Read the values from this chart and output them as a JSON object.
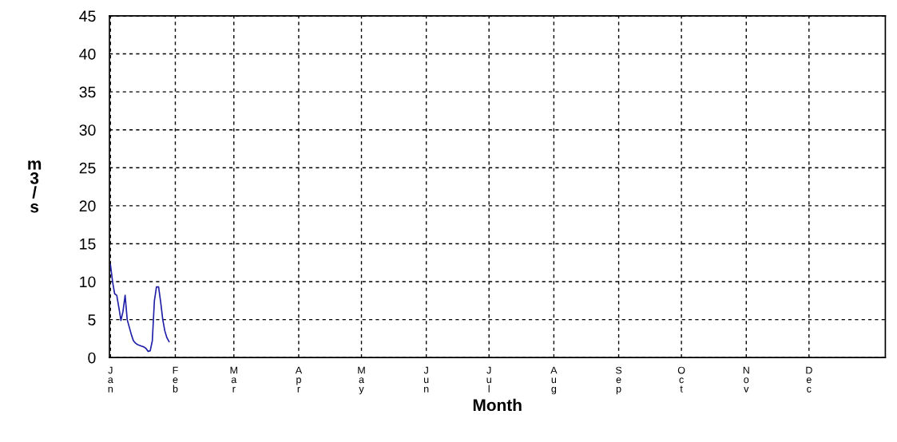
{
  "chart_data": {
    "type": "line",
    "xlabel": "Month",
    "ylabel": "m\n3\n/\ns",
    "categories": [
      "J\na\nn",
      null,
      null,
      null,
      null,
      null,
      null,
      null,
      null,
      null,
      null,
      null,
      null,
      null,
      null,
      null,
      null,
      null,
      null,
      null,
      null,
      null,
      null,
      null,
      null,
      null,
      null,
      null,
      null,
      null,
      null,
      "F\ne\nb",
      null,
      null,
      null,
      null,
      null,
      null,
      null,
      null,
      null,
      null,
      null,
      null,
      null,
      null,
      null,
      null,
      null,
      null,
      null,
      null,
      null,
      null,
      null,
      null,
      null,
      null,
      null,
      "M\na\nr",
      null,
      null,
      null,
      null,
      null,
      null,
      null,
      null,
      null,
      null,
      null,
      null,
      null,
      null,
      null,
      null,
      null,
      null,
      null,
      null,
      null,
      null,
      null,
      null,
      null,
      null,
      null,
      null,
      null,
      null,
      "A\np\nr",
      null,
      null,
      null,
      null,
      null,
      null,
      null,
      null,
      null,
      null,
      null,
      null,
      null,
      null,
      null,
      null,
      null,
      null,
      null,
      null,
      null,
      null,
      null,
      null,
      null,
      null,
      null,
      null,
      null,
      "M\na\ny",
      null,
      null,
      null,
      null,
      null,
      null,
      null,
      null,
      null,
      null,
      null,
      null,
      null,
      null,
      null,
      null,
      null,
      null,
      null,
      null,
      null,
      null,
      null,
      null,
      null,
      null,
      null,
      null,
      null,
      null,
      "J\nu\nn",
      null,
      null,
      null,
      null,
      null,
      null,
      null,
      null,
      null,
      null,
      null,
      null,
      null,
      null,
      null,
      null,
      null,
      null,
      null,
      null,
      null,
      null,
      null,
      null,
      null,
      null,
      null,
      null,
      null,
      "J\nu\nl",
      null,
      null,
      null,
      null,
      null,
      null,
      null,
      null,
      null,
      null,
      null,
      null,
      null,
      null,
      null,
      null,
      null,
      null,
      null,
      null,
      null,
      null,
      null,
      null,
      null,
      null,
      null,
      null,
      null,
      null,
      "A\nu\ng",
      null,
      null,
      null,
      null,
      null,
      null,
      null,
      null,
      null,
      null,
      null,
      null,
      null,
      null,
      null,
      null,
      null,
      null,
      null,
      null,
      null,
      null,
      null,
      null,
      null,
      null,
      null,
      null,
      null,
      null,
      "S\ne\np",
      null,
      null,
      null,
      null,
      null,
      null,
      null,
      null,
      null,
      null,
      null,
      null,
      null,
      null,
      null,
      null,
      null,
      null,
      null,
      null,
      null,
      null,
      null,
      null,
      null,
      null,
      null,
      null,
      null,
      "O\nc\nt",
      null,
      null,
      null,
      null,
      null,
      null,
      null,
      null,
      null,
      null,
      null,
      null,
      null,
      null,
      null,
      null,
      null,
      null,
      null,
      null,
      null,
      null,
      null,
      null,
      null,
      null,
      null,
      null,
      null,
      null,
      "N\no\nv",
      null,
      null,
      null,
      null,
      null,
      null,
      null,
      null,
      null,
      null,
      null,
      null,
      null,
      null,
      null,
      null,
      null,
      null,
      null,
      null,
      null,
      null,
      null,
      null,
      null,
      null,
      null,
      null,
      null,
      "D\ne\nc",
      null,
      null,
      null,
      null,
      null,
      null,
      null,
      null,
      null,
      null,
      null,
      null,
      null,
      null,
      null,
      null,
      null,
      null,
      null,
      null,
      null,
      null,
      null,
      null,
      null,
      null,
      null,
      null,
      null,
      null,
      null,
      null,
      null,
      null,
      null,
      null
    ],
    "series": [
      {
        "color": "#1f1fa8",
        "values": [
          12.2,
          10.0,
          8.4,
          8.2,
          6.6,
          4.9,
          6.1,
          8.2,
          5.0,
          4.0,
          3.0,
          2.2,
          1.9,
          1.7,
          1.6,
          1.5,
          1.4,
          1.2,
          0.8,
          0.9,
          2.2,
          7.5,
          9.3,
          9.3,
          7.3,
          5.0,
          3.5,
          2.6,
          2.1,
          null,
          null,
          null,
          null,
          null,
          null,
          null,
          null,
          null,
          null,
          null,
          null,
          null,
          null,
          null,
          null,
          null,
          null,
          null,
          null,
          null,
          null,
          null,
          null,
          null,
          null,
          null,
          null,
          null,
          null,
          null,
          null,
          null,
          null,
          null,
          null,
          null,
          null,
          null,
          null,
          null,
          null,
          null,
          null,
          null,
          null,
          null,
          null,
          null,
          null,
          null,
          null,
          null,
          null,
          null,
          null,
          null,
          null,
          null,
          null,
          null,
          null,
          null,
          null,
          null,
          null,
          null,
          null,
          null,
          null,
          null,
          null,
          null,
          null,
          null,
          null,
          null,
          null,
          null,
          null,
          null,
          null,
          null,
          null,
          null,
          null,
          null,
          null,
          null,
          null,
          null,
          null,
          null,
          null,
          null,
          null,
          null,
          null,
          null,
          null,
          null,
          null,
          null,
          null,
          null,
          null,
          null,
          null,
          null,
          null,
          null,
          null,
          null,
          null,
          null,
          null,
          null,
          null,
          null,
          null,
          null,
          null,
          null,
          null,
          null,
          null,
          null,
          null,
          null,
          null,
          null,
          null,
          null,
          null,
          null,
          null,
          null,
          null,
          null,
          null,
          null,
          null,
          null,
          null,
          null,
          null,
          null,
          null,
          null,
          null,
          null,
          null,
          null,
          null,
          null,
          null,
          null,
          null,
          null,
          null,
          null,
          null,
          null,
          null,
          null,
          null,
          null,
          null,
          null,
          null,
          null,
          null,
          null,
          null,
          null,
          null,
          null,
          null,
          null,
          null,
          null,
          null,
          null,
          null,
          null,
          null,
          null,
          null,
          null,
          null,
          null,
          null,
          null,
          null,
          null,
          null,
          null,
          null,
          null,
          null,
          null,
          null,
          null,
          null,
          null,
          null,
          null,
          null,
          null,
          null,
          null,
          null,
          null,
          null,
          null,
          null,
          null,
          null,
          null,
          null,
          null,
          null,
          null,
          null,
          null,
          null,
          null,
          null,
          null,
          null,
          null,
          null,
          null,
          null,
          null,
          null,
          null,
          null,
          null,
          null,
          null,
          null,
          null,
          null,
          null,
          null,
          null,
          null,
          null,
          null,
          null,
          null,
          null,
          null,
          null,
          null,
          null,
          null,
          null,
          null,
          null,
          null,
          null,
          null,
          null,
          null,
          null,
          null,
          null,
          null,
          null,
          null,
          null,
          null,
          null,
          null,
          null,
          null,
          null,
          null,
          null,
          null,
          null,
          null,
          null,
          null,
          null,
          null,
          null,
          null,
          null,
          null,
          null,
          null,
          null,
          null,
          null,
          null,
          null,
          null,
          null,
          null,
          null,
          null,
          null,
          null,
          null,
          null,
          null,
          null,
          null,
          null,
          null,
          null,
          null,
          null,
          null,
          null,
          null,
          null,
          null,
          null,
          null,
          null,
          null,
          null,
          null,
          null,
          null,
          null,
          null,
          null,
          null,
          null,
          null,
          null,
          null,
          null,
          null,
          null,
          null,
          null
        ]
      }
    ],
    "ylim": [
      0,
      45
    ],
    "yticks": [
      0,
      5,
      10,
      15,
      20,
      25,
      30,
      35,
      40,
      45
    ],
    "grid": true,
    "marker": "none",
    "line_style": "solid"
  }
}
